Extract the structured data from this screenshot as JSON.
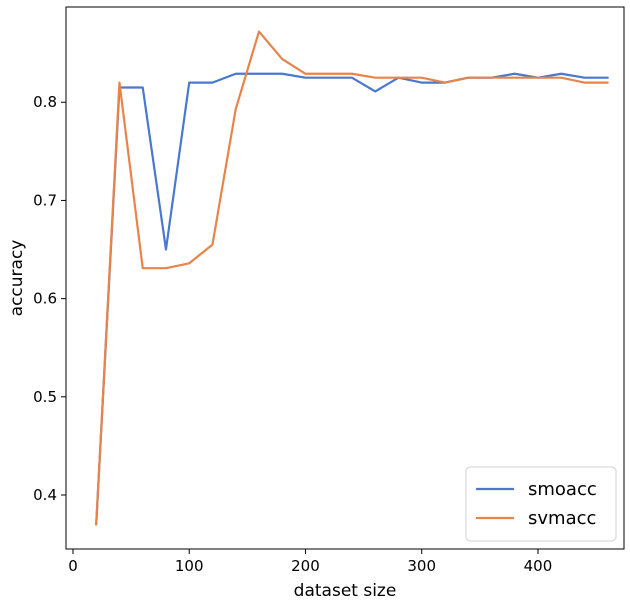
{
  "chart_data": {
    "type": "line",
    "xlabel": "dataset size",
    "ylabel": "accuracy",
    "xlim": [
      -6,
      474
    ],
    "ylim": [
      0.345,
      0.897
    ],
    "xticks": [
      0,
      100,
      200,
      300,
      400
    ],
    "yticks": [
      0.4,
      0.5,
      0.6,
      0.7,
      0.8
    ],
    "x": [
      20,
      40,
      60,
      80,
      100,
      120,
      140,
      160,
      180,
      200,
      220,
      240,
      260,
      280,
      300,
      320,
      340,
      360,
      380,
      400,
      420,
      440,
      460
    ],
    "series": [
      {
        "name": "smoacc",
        "color": "#4878cf",
        "values": [
          0.37,
          0.815,
          0.815,
          0.65,
          0.82,
          0.82,
          0.829,
          0.829,
          0.829,
          0.825,
          0.825,
          0.825,
          0.811,
          0.825,
          0.82,
          0.82,
          0.825,
          0.825,
          0.829,
          0.825,
          0.829,
          0.825,
          0.825
        ]
      },
      {
        "name": "svmacc",
        "color": "#e8844a",
        "values": [
          0.37,
          0.82,
          0.631,
          0.631,
          0.636,
          0.655,
          0.793,
          0.872,
          0.844,
          0.829,
          0.829,
          0.829,
          0.825,
          0.825,
          0.825,
          0.82,
          0.825,
          0.825,
          0.825,
          0.825,
          0.825,
          0.82,
          0.82
        ]
      }
    ],
    "grid": false,
    "legend_position": "bottom-right"
  }
}
